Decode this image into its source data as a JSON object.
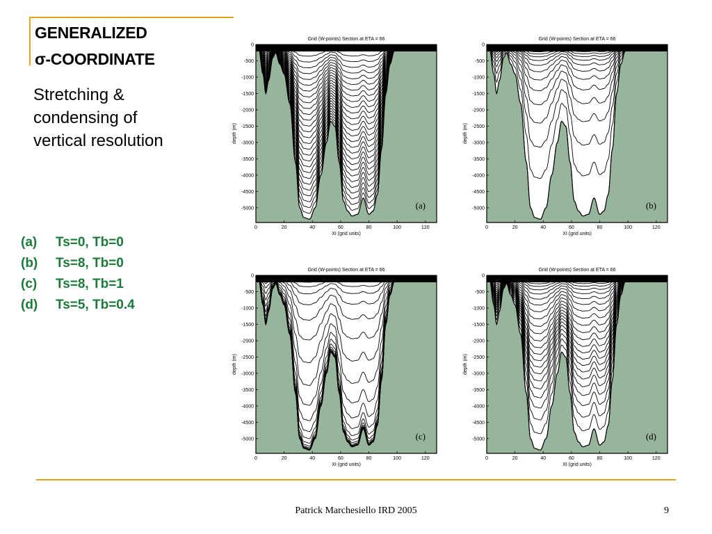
{
  "slide": {
    "title_line1": "GENERALIZED",
    "title_line2": "σ-COORDINATE",
    "subtitle_lines": [
      "Stretching &",
      "condensing of",
      "vertical resolution"
    ],
    "legend": [
      {
        "key": "(a)",
        "text": "Ts=0, Tb=0"
      },
      {
        "key": "(b)",
        "text": "Ts=8, Tb=0"
      },
      {
        "key": "(c)",
        "text": "Ts=8, Tb=1"
      },
      {
        "key": "(d)",
        "text": "Ts=5, Tb=0.4"
      }
    ],
    "footer": "Patrick Marchesiello IRD 2005",
    "page_number": "9"
  },
  "colors": {
    "accent": "#e8a21a",
    "legend_text": "#1a7a3a",
    "seabed": "#97b59a"
  },
  "plots": [
    {
      "label": "(a)",
      "title": "Grid (W-points) Section at  ETA = 66",
      "ts": 0,
      "tb": 0
    },
    {
      "label": "(b)",
      "title": "Grid (W-points) Section at  ETA = 66",
      "ts": 8,
      "tb": 0
    },
    {
      "label": "(c)",
      "title": "Grid (W-points) Section at  ETA = 66",
      "ts": 8,
      "tb": 1
    },
    {
      "label": "(d)",
      "title": "Grid (W-points) Section at  ETA = 66",
      "ts": 5,
      "tb": 0.4
    }
  ],
  "axes": {
    "xlabel": "XI  (grid units)",
    "ylabel": "depth  (m)",
    "xticks": [
      "0",
      "20",
      "40",
      "60",
      "80",
      "100",
      "120"
    ],
    "yticks": [
      "0",
      "-500",
      "-1000",
      "-1500",
      "-2000",
      "-2500",
      "-3000",
      "-3500",
      "-4000",
      "-4500",
      "-5000"
    ]
  }
}
